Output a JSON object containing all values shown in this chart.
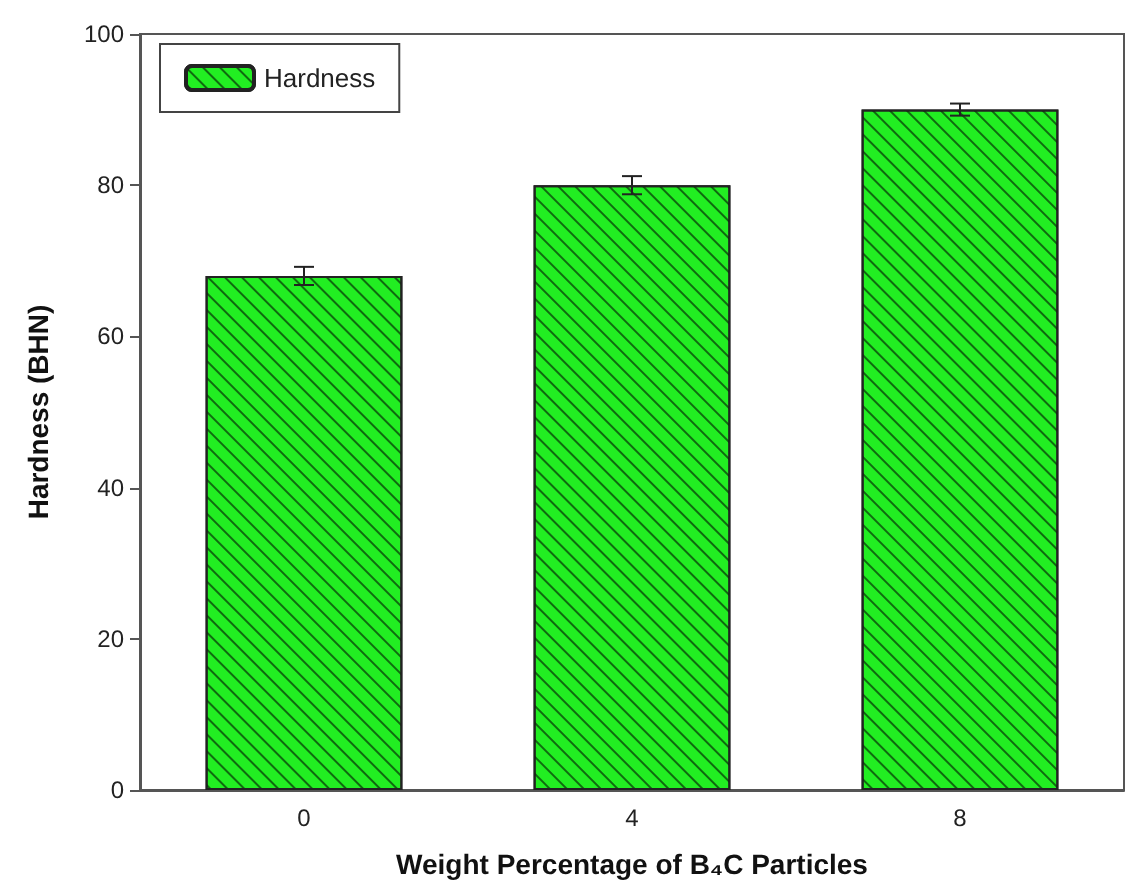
{
  "chart_data": {
    "type": "bar",
    "xlabel": "Weight Percentage of B₄C Particles",
    "ylabel": "Hardness (BHN)",
    "categories": [
      "0",
      "4",
      "8"
    ],
    "series": [
      {
        "name": "Hardness",
        "color": "#22ee22",
        "values": [
          68,
          80,
          90
        ],
        "errors": [
          1.2,
          1.2,
          0.8
        ]
      }
    ],
    "ylim": [
      0,
      100
    ],
    "yticks": [
      0,
      20,
      40,
      60,
      80,
      100
    ],
    "grid": false,
    "legend": "top left"
  }
}
